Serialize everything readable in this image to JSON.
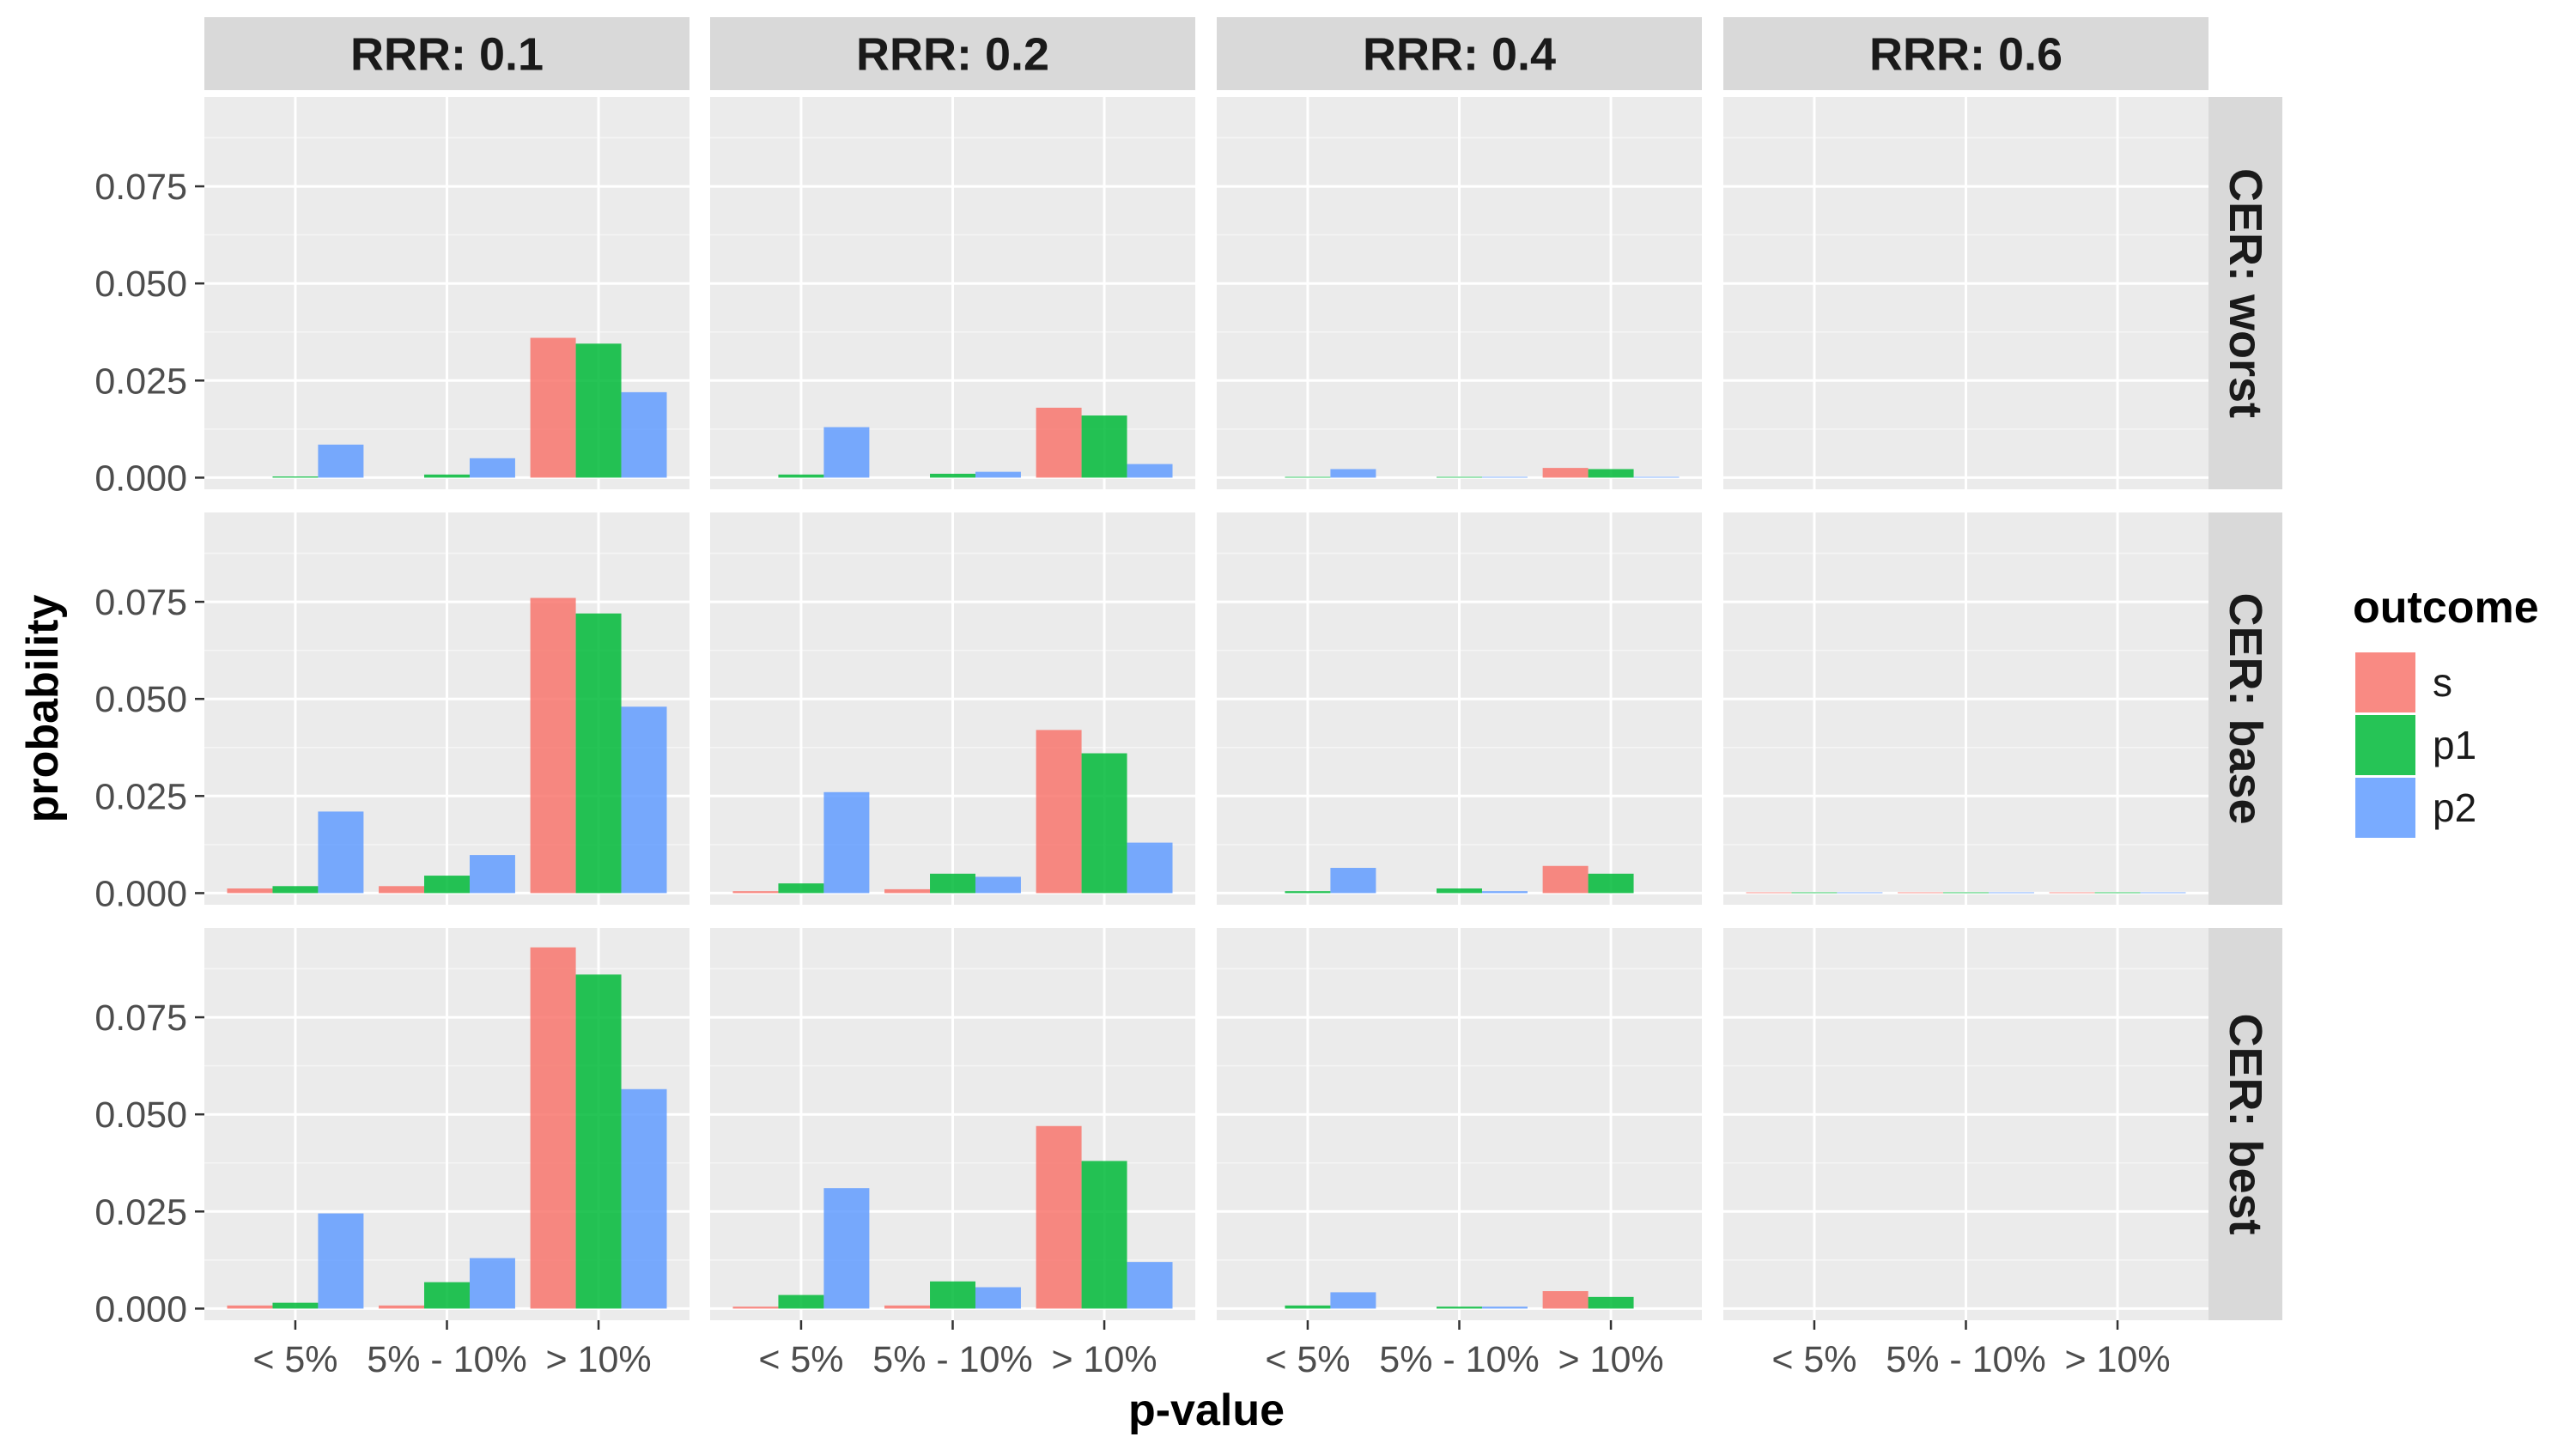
{
  "chart_data": {
    "type": "bar",
    "layout": "faceted grid",
    "xlabel": "p-value",
    "ylabel": "probability",
    "categories": [
      "< 5%",
      "5% - 10%",
      "> 10%"
    ],
    "ylim": [
      -0.003,
      0.098
    ],
    "yticks": [
      0.0,
      0.025,
      0.05,
      0.075
    ],
    "ytick_labels": [
      "0.000",
      "0.025",
      "0.050",
      "0.075"
    ],
    "grid": true,
    "legend": {
      "title": "outcome",
      "position": "right",
      "entries": [
        {
          "name": "s",
          "color": "#F8766D"
        },
        {
          "name": "p1",
          "color": "#00BA38"
        },
        {
          "name": "p2",
          "color": "#619CFF"
        }
      ]
    },
    "col_facets": [
      "RRR: 0.1",
      "RRR: 0.2",
      "RRR: 0.4",
      "RRR: 0.6"
    ],
    "row_facets": [
      "CER: worst",
      "CER: base",
      "CER: best"
    ],
    "panels": [
      [
        {
          "series": [
            {
              "name": "s",
              "values": [
                0.0,
                0.0,
                0.036
              ]
            },
            {
              "name": "p1",
              "values": [
                0.0003,
                0.0008,
                0.0345
              ]
            },
            {
              "name": "p2",
              "values": [
                0.0085,
                0.005,
                0.022
              ]
            }
          ]
        },
        {
          "series": [
            {
              "name": "s",
              "values": [
                0.0,
                0.0,
                0.018
              ]
            },
            {
              "name": "p1",
              "values": [
                0.0008,
                0.001,
                0.016
              ]
            },
            {
              "name": "p2",
              "values": [
                0.013,
                0.0015,
                0.0035
              ]
            }
          ]
        },
        {
          "series": [
            {
              "name": "s",
              "values": [
                0.0,
                0.0,
                0.0025
              ]
            },
            {
              "name": "p1",
              "values": [
                0.0002,
                0.0002,
                0.0022
              ]
            },
            {
              "name": "p2",
              "values": [
                0.0022,
                0.0002,
                0.0002
              ]
            }
          ]
        },
        {
          "series": [
            {
              "name": "s",
              "values": [
                0.0,
                0.0,
                0.0
              ]
            },
            {
              "name": "p1",
              "values": [
                0.0,
                0.0,
                0.0
              ]
            },
            {
              "name": "p2",
              "values": [
                0.0,
                0.0,
                0.0
              ]
            }
          ]
        }
      ],
      [
        {
          "series": [
            {
              "name": "s",
              "values": [
                0.0012,
                0.0018,
                0.076
              ]
            },
            {
              "name": "p1",
              "values": [
                0.0018,
                0.0045,
                0.072
              ]
            },
            {
              "name": "p2",
              "values": [
                0.021,
                0.0098,
                0.048
              ]
            }
          ]
        },
        {
          "series": [
            {
              "name": "s",
              "values": [
                0.0005,
                0.001,
                0.042
              ]
            },
            {
              "name": "p1",
              "values": [
                0.0025,
                0.005,
                0.036
              ]
            },
            {
              "name": "p2",
              "values": [
                0.026,
                0.0042,
                0.013
              ]
            }
          ]
        },
        {
          "series": [
            {
              "name": "s",
              "values": [
                0.0,
                0.0,
                0.007
              ]
            },
            {
              "name": "p1",
              "values": [
                0.0005,
                0.0012,
                0.005
              ]
            },
            {
              "name": "p2",
              "values": [
                0.0065,
                0.0005,
                0.0
              ]
            }
          ]
        },
        {
          "series": [
            {
              "name": "s",
              "values": [
                0.0002,
                0.0002,
                0.0002
              ]
            },
            {
              "name": "p1",
              "values": [
                0.0002,
                0.0002,
                0.0002
              ]
            },
            {
              "name": "p2",
              "values": [
                0.0002,
                0.0002,
                0.0002
              ]
            }
          ]
        }
      ],
      [
        {
          "series": [
            {
              "name": "s",
              "values": [
                0.0008,
                0.0008,
                0.093
              ]
            },
            {
              "name": "p1",
              "values": [
                0.0015,
                0.0068,
                0.086
              ]
            },
            {
              "name": "p2",
              "values": [
                0.0245,
                0.013,
                0.0565
              ]
            }
          ]
        },
        {
          "series": [
            {
              "name": "s",
              "values": [
                0.0005,
                0.0008,
                0.047
              ]
            },
            {
              "name": "p1",
              "values": [
                0.0035,
                0.007,
                0.038
              ]
            },
            {
              "name": "p2",
              "values": [
                0.031,
                0.0055,
                0.012
              ]
            }
          ]
        },
        {
          "series": [
            {
              "name": "s",
              "values": [
                0.0,
                0.0,
                0.0045
              ]
            },
            {
              "name": "p1",
              "values": [
                0.0008,
                0.0005,
                0.003
              ]
            },
            {
              "name": "p2",
              "values": [
                0.0042,
                0.0005,
                0.0
              ]
            }
          ]
        },
        {
          "series": [
            {
              "name": "s",
              "values": [
                0.0,
                0.0,
                0.0
              ]
            },
            {
              "name": "p1",
              "values": [
                0.0,
                0.0,
                0.0
              ]
            },
            {
              "name": "p2",
              "values": [
                0.0,
                0.0,
                0.0
              ]
            }
          ]
        }
      ]
    ]
  }
}
